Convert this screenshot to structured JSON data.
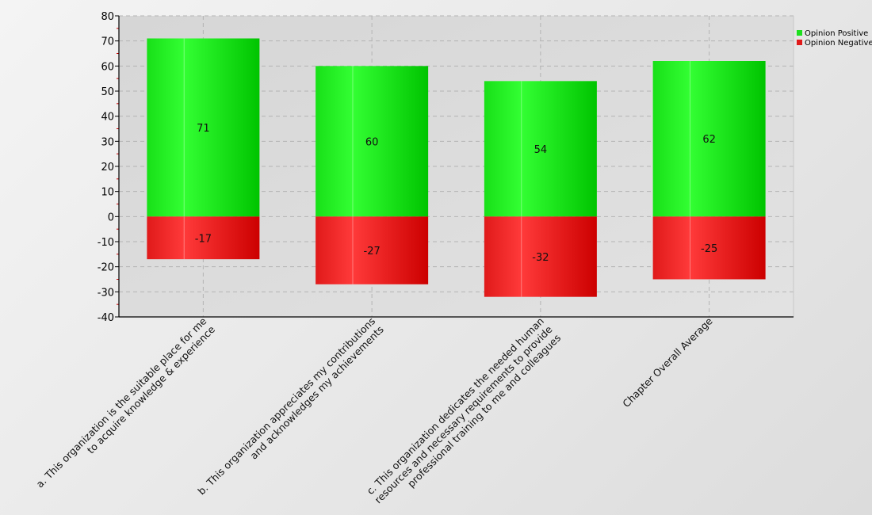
{
  "chart_data": {
    "type": "bar",
    "stacked": true,
    "categories": [
      [
        "a. This organization is the suitable place for me",
        "to acquire knowledge & experience"
      ],
      [
        "b. This organization appreciates my contributions",
        "and acknowledges my achievements"
      ],
      [
        "c. This organization dedicates the needed human",
        "resources and necessary requirements to provide",
        "professional training to me and colleagues"
      ],
      [
        "Chapter Overall Average"
      ]
    ],
    "series": [
      {
        "name": "Opinion Positive",
        "values": [
          71,
          60,
          54,
          62
        ],
        "color": "#1ee01e"
      },
      {
        "name": "Opinion Negative",
        "values": [
          -17,
          -27,
          -32,
          -25
        ],
        "color": "#e01a1a"
      }
    ],
    "y_ticks": [
      "80",
      "70",
      "60",
      "50",
      "40",
      "30",
      "20",
      "10",
      "0",
      "-10",
      "-20",
      "-30",
      "-40"
    ],
    "ylim": [
      -40,
      80
    ],
    "grid": true,
    "legend_position": "top-right",
    "title": "",
    "xlabel": "",
    "ylabel": ""
  }
}
